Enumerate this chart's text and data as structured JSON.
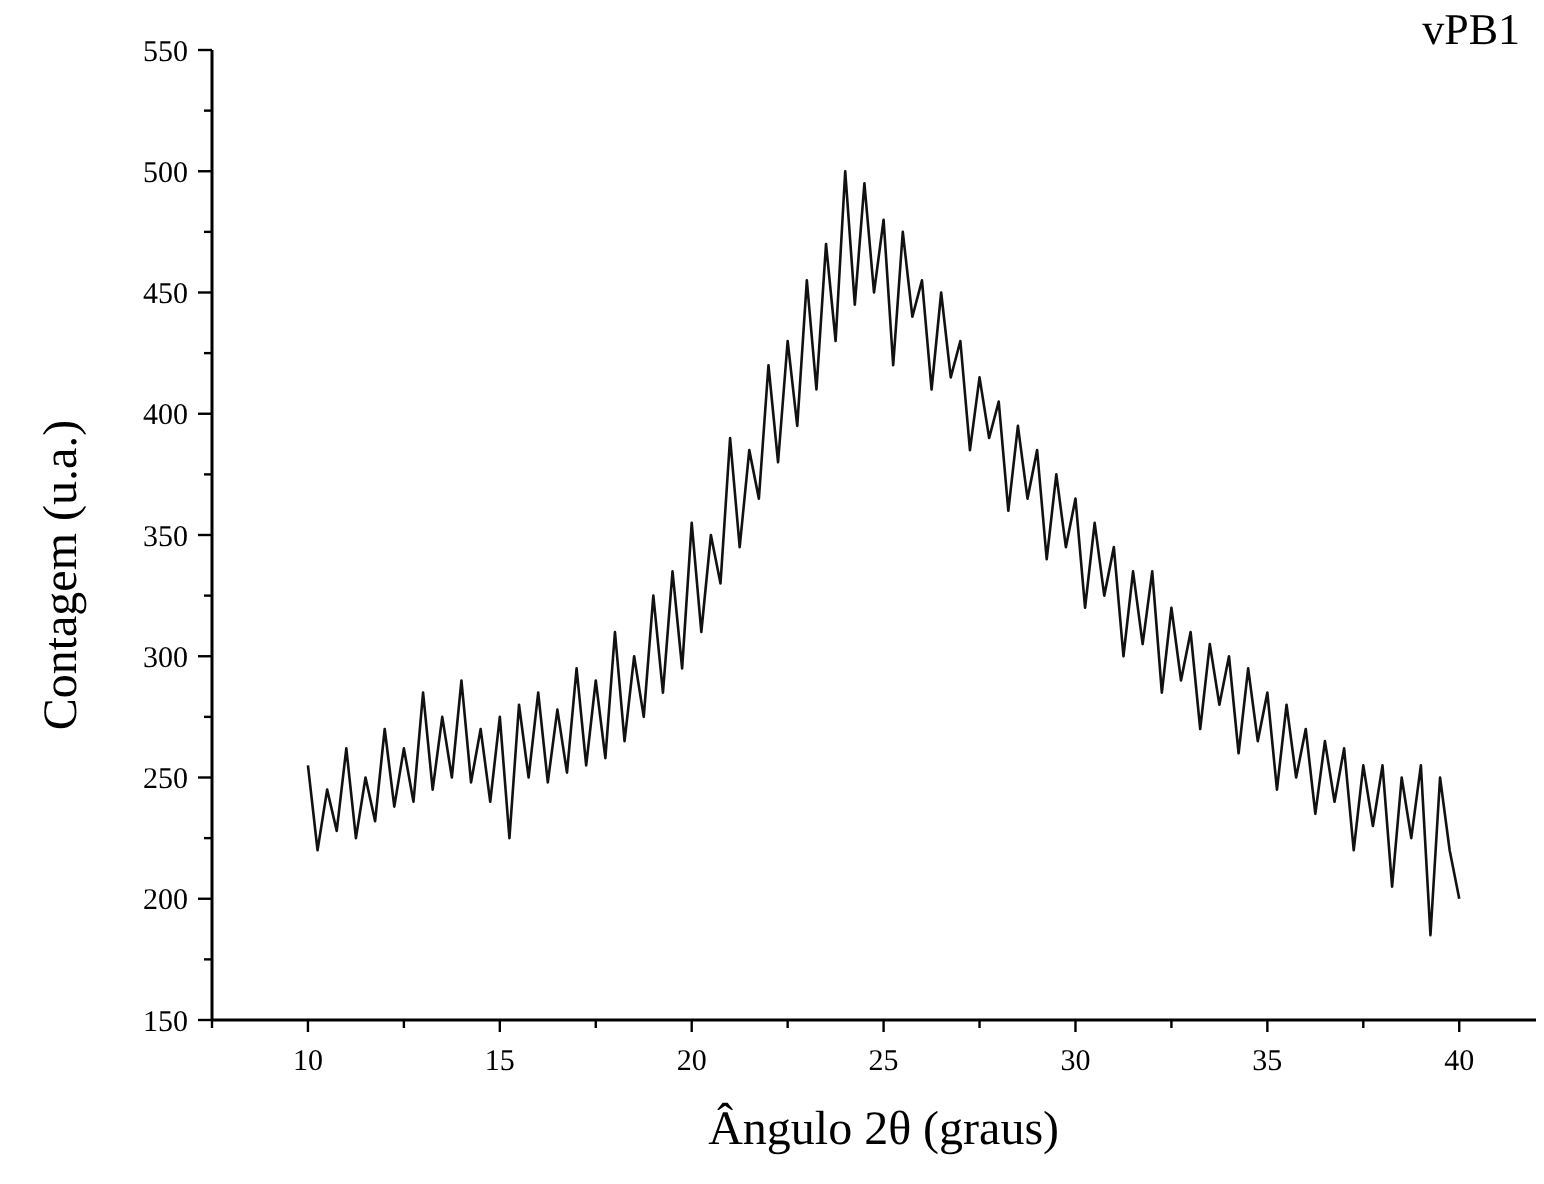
{
  "chart_data": {
    "type": "line",
    "title": "vPB1",
    "xlabel": "Ângulo 2θ (graus)",
    "ylabel": "Contagem (u.a.)",
    "xlim": [
      7.5,
      42
    ],
    "ylim": [
      150,
      550
    ],
    "xticks": [
      {
        "value": 7.5,
        "label": null
      },
      10,
      {
        "value": 12.5,
        "label": null
      },
      15,
      {
        "value": 17.5,
        "label": null
      },
      20,
      {
        "value": 22.5,
        "label": null
      },
      25,
      {
        "value": 27.5,
        "label": null
      },
      30,
      {
        "value": 32.5,
        "label": null
      },
      35,
      {
        "value": 37.5,
        "label": null
      },
      40
    ],
    "yticks": [
      150,
      {
        "value": 175,
        "label": null
      },
      200,
      {
        "value": 225,
        "label": null
      },
      250,
      {
        "value": 275,
        "label": null
      },
      300,
      {
        "value": 325,
        "label": null
      },
      350,
      {
        "value": 375,
        "label": null
      },
      400,
      {
        "value": 425,
        "label": null
      },
      450,
      {
        "value": 475,
        "label": null
      },
      500,
      {
        "value": 525,
        "label": null
      },
      550
    ],
    "marker": "none",
    "line_style": "solid",
    "x": [
      10,
      10.25,
      10.5,
      10.75,
      11,
      11.25,
      11.5,
      11.75,
      12,
      12.25,
      12.5,
      12.75,
      13,
      13.25,
      13.5,
      13.75,
      14,
      14.25,
      14.5,
      14.75,
      15,
      15.25,
      15.5,
      15.75,
      16,
      16.25,
      16.5,
      16.75,
      17,
      17.25,
      17.5,
      17.75,
      18,
      18.25,
      18.5,
      18.75,
      19,
      19.25,
      19.5,
      19.75,
      20,
      20.25,
      20.5,
      20.75,
      21,
      21.25,
      21.5,
      21.75,
      22,
      22.25,
      22.5,
      22.75,
      23,
      23.25,
      23.5,
      23.75,
      24,
      24.25,
      24.5,
      24.75,
      25,
      25.25,
      25.5,
      25.75,
      26,
      26.25,
      26.5,
      26.75,
      27,
      27.25,
      27.5,
      27.75,
      28,
      28.25,
      28.5,
      28.75,
      29,
      29.25,
      29.5,
      29.75,
      30,
      30.25,
      30.5,
      30.75,
      31,
      31.25,
      31.5,
      31.75,
      32,
      32.25,
      32.5,
      32.75,
      33,
      33.25,
      33.5,
      33.75,
      34,
      34.25,
      34.5,
      34.75,
      35,
      35.25,
      35.5,
      35.75,
      36,
      36.25,
      36.5,
      36.75,
      37,
      37.25,
      37.5,
      37.75,
      38,
      38.25,
      38.5,
      38.75,
      39,
      39.25,
      39.5,
      39.75,
      40
    ],
    "series": [
      {
        "color": "#111111",
        "values": [
          255,
          220,
          245,
          228,
          262,
          225,
          250,
          232,
          270,
          238,
          262,
          240,
          285,
          245,
          275,
          250,
          290,
          248,
          270,
          240,
          275,
          225,
          280,
          250,
          285,
          248,
          278,
          252,
          295,
          255,
          290,
          258,
          310,
          265,
          300,
          275,
          325,
          285,
          335,
          295,
          355,
          310,
          350,
          330,
          390,
          345,
          385,
          365,
          420,
          380,
          430,
          395,
          455,
          410,
          470,
          430,
          500,
          445,
          495,
          450,
          480,
          420,
          475,
          440,
          455,
          410,
          450,
          415,
          430,
          385,
          415,
          390,
          405,
          360,
          395,
          365,
          385,
          340,
          375,
          345,
          365,
          320,
          355,
          325,
          345,
          300,
          335,
          305,
          335,
          285,
          320,
          290,
          310,
          270,
          305,
          280,
          300,
          260,
          295,
          265,
          285,
          245,
          280,
          250,
          270,
          235,
          265,
          240,
          262,
          220,
          255,
          230,
          255,
          205,
          250,
          225,
          255,
          185,
          250,
          220,
          200
        ]
      }
    ]
  }
}
